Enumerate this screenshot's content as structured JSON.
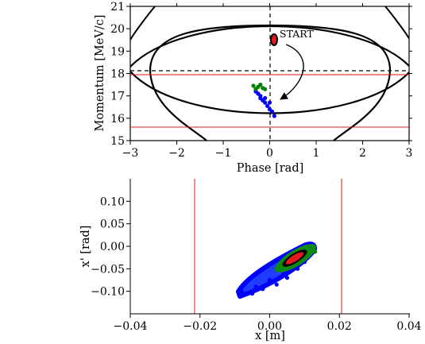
{
  "chart_data": [
    {
      "type": "scatter",
      "xlabel": "Phase [rad]",
      "ylabel": "Momentum [MeV/c]",
      "xlim": [
        -3,
        3
      ],
      "ylim": [
        15,
        21
      ],
      "xticks": [
        "−3",
        "−2",
        "−1",
        "0",
        "1",
        "2",
        "3"
      ],
      "yticks": [
        "15",
        "16",
        "17",
        "18",
        "19",
        "20",
        "21"
      ],
      "xtick_values": [
        -3,
        -2,
        -1,
        0,
        1,
        2,
        3
      ],
      "ytick_values": [
        15,
        16,
        17,
        18,
        19,
        20,
        21
      ],
      "reference_lines": {
        "horizontal_red": [
          17.9,
          15.55
        ],
        "horizontal_dashed": 18.05,
        "vertical_dashed": 0
      },
      "annotation": {
        "text": "START",
        "x": 0.28,
        "y": 19.7,
        "arrow_from": [
          0.55,
          19.3
        ],
        "arrow_to": [
          0.2,
          16.8
        ]
      },
      "separatrices": [
        {
          "name": "outer",
          "center_y": 18.05,
          "half_width": 2.9,
          "top_y": 21.5,
          "bottom_y": 14.6
        },
        {
          "name": "inner",
          "center_y": 18.05,
          "half_width": 2.55,
          "top_y": 20.95,
          "bottom_y": 14.95
        }
      ],
      "series": [
        {
          "color": "#0000ff",
          "points": [
            [
              -0.3,
              17.2
            ],
            [
              -0.2,
              17.0
            ],
            [
              -0.15,
              16.8
            ],
            [
              -0.1,
              16.7
            ],
            [
              -0.05,
              16.55
            ],
            [
              0.0,
              16.4
            ],
            [
              0.05,
              16.3
            ],
            [
              0.1,
              16.1
            ],
            [
              -0.25,
              17.1
            ],
            [
              -0.1,
              16.9
            ],
            [
              0.0,
              16.7
            ],
            [
              -0.2,
              16.9
            ]
          ]
        },
        {
          "color": "#008000",
          "points": [
            [
              -0.35,
              17.45
            ],
            [
              -0.25,
              17.4
            ],
            [
              -0.15,
              17.35
            ],
            [
              -0.3,
              17.3
            ],
            [
              -0.2,
              17.5
            ],
            [
              -0.1,
              17.3
            ]
          ]
        },
        {
          "color": "#ff0000",
          "points": [
            [
              0.1,
              19.55
            ],
            [
              0.1,
              19.45
            ]
          ]
        }
      ]
    },
    {
      "type": "scatter",
      "xlabel": "x [m]",
      "ylabel": "x' [rad]",
      "xlim": [
        -0.04,
        0.04
      ],
      "ylim": [
        -0.15,
        0.15
      ],
      "xticks": [
        "−0.04",
        "−0.02",
        "0.00",
        "0.02",
        "0.04"
      ],
      "yticks": [
        "−0.10",
        "−0.05",
        "0.00",
        "0.05",
        "0.10"
      ],
      "xtick_values": [
        -0.04,
        -0.02,
        0.0,
        0.02,
        0.04
      ],
      "ytick_values": [
        -0.1,
        -0.05,
        0.0,
        0.05,
        0.1
      ],
      "reference_lines": {
        "vertical_red": [
          -0.021,
          0.0205
        ]
      },
      "series": [
        {
          "color": "#0000ff",
          "points": [
            [
              -0.008,
              -0.1
            ],
            [
              -0.005,
              -0.105
            ],
            [
              -0.002,
              -0.095
            ],
            [
              0.002,
              -0.085
            ],
            [
              0.005,
              -0.07
            ],
            [
              0.008,
              -0.05
            ],
            [
              0.01,
              -0.035
            ],
            [
              0.012,
              -0.015
            ],
            [
              -0.004,
              -0.09
            ],
            [
              0.0,
              -0.075
            ],
            [
              0.004,
              -0.06
            ],
            [
              0.007,
              -0.045
            ],
            [
              0.011,
              -0.02
            ],
            [
              0.013,
              -0.005
            ],
            [
              0.009,
              -0.03
            ],
            [
              0.006,
              -0.055
            ]
          ]
        },
        {
          "color": "#008000",
          "points": [
            [
              0.004,
              -0.035
            ],
            [
              0.006,
              -0.025
            ],
            [
              0.008,
              -0.02
            ],
            [
              0.01,
              -0.012
            ],
            [
              0.012,
              -0.008
            ],
            [
              0.011,
              -0.018
            ],
            [
              0.009,
              -0.028
            ],
            [
              0.007,
              -0.035
            ],
            [
              0.013,
              -0.012
            ],
            [
              0.005,
              -0.04
            ]
          ]
        },
        {
          "color": "#ff0000",
          "points": [
            [
              0.007,
              -0.03
            ],
            [
              0.008,
              -0.025
            ],
            [
              0.009,
              -0.02
            ],
            [
              0.01,
              -0.022
            ]
          ]
        }
      ]
    }
  ]
}
